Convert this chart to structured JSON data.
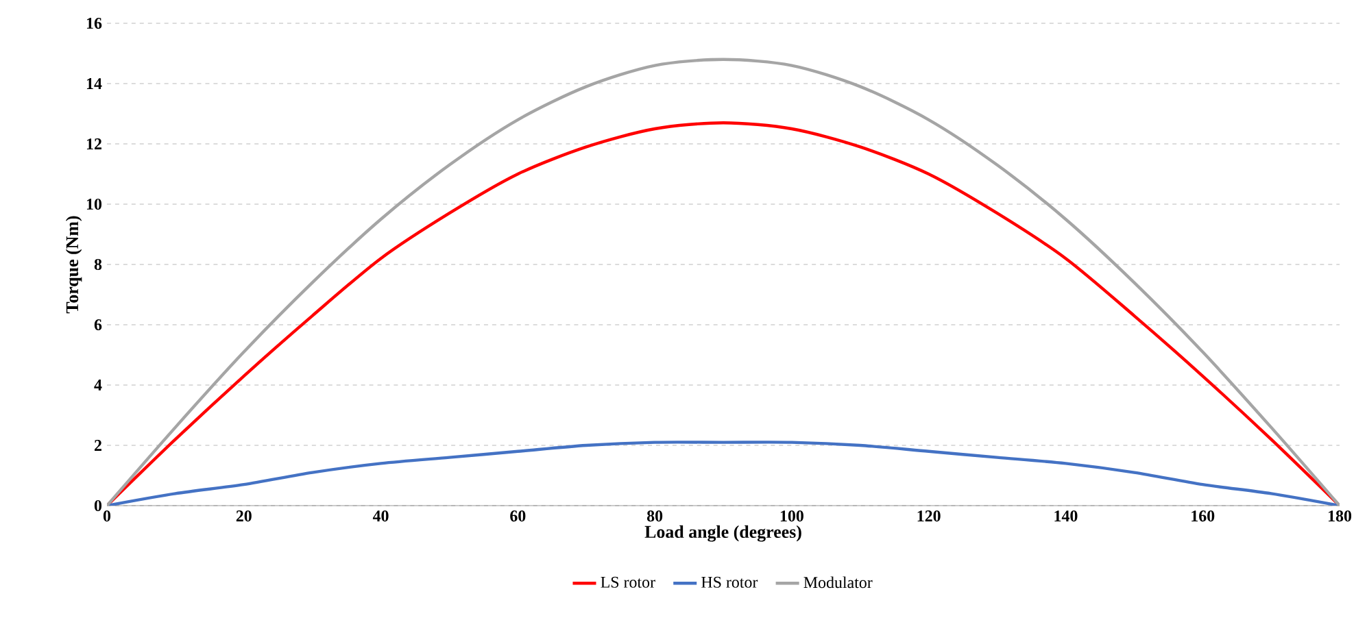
{
  "chart_data": {
    "type": "line",
    "xlabel": "Load angle (degrees)",
    "ylabel": "Torque (Nm)",
    "x": [
      0,
      10,
      20,
      30,
      40,
      50,
      60,
      70,
      80,
      90,
      100,
      110,
      120,
      130,
      140,
      150,
      160,
      170,
      180
    ],
    "series": [
      {
        "name": "LS rotor",
        "color": "#ff0000",
        "values": [
          0,
          2.2,
          4.3,
          6.3,
          8.2,
          9.7,
          11.0,
          11.9,
          12.5,
          12.7,
          12.5,
          11.9,
          11.0,
          9.7,
          8.2,
          6.3,
          4.3,
          2.2,
          0
        ]
      },
      {
        "name": "HS rotor",
        "color": "#4472c4",
        "values": [
          0,
          0.4,
          0.7,
          1.1,
          1.4,
          1.6,
          1.8,
          2.0,
          2.1,
          2.1,
          2.1,
          2.0,
          1.8,
          1.6,
          1.4,
          1.1,
          0.7,
          0.4,
          0
        ]
      },
      {
        "name": "Modulator",
        "color": "#a5a5a5",
        "values": [
          0,
          2.6,
          5.1,
          7.4,
          9.5,
          11.3,
          12.8,
          13.9,
          14.6,
          14.8,
          14.6,
          13.9,
          12.8,
          11.3,
          9.5,
          7.4,
          5.1,
          2.6,
          0
        ]
      }
    ],
    "xlim": [
      0,
      180
    ],
    "xticks": [
      0,
      20,
      40,
      60,
      80,
      100,
      120,
      140,
      160,
      180
    ],
    "ylim": [
      0,
      16
    ],
    "yticks": [
      0,
      2,
      4,
      6,
      8,
      10,
      12,
      14,
      16
    ],
    "grid": "y",
    "legend": "bottom",
    "marker": "none",
    "line_style": "solid"
  }
}
